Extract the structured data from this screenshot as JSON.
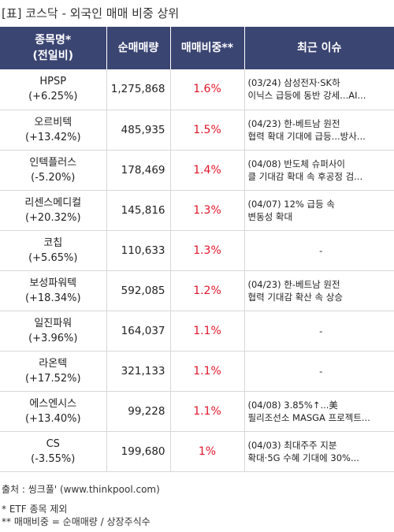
{
  "title": "[표] 코스닥 - 외국인 매매 비중 상위",
  "table": {
    "headers": {
      "name_line1": "종목명*",
      "name_line2": "(전일비)",
      "volume": "순매매량",
      "ratio": "매매비중**",
      "issue": "최근 이슈"
    },
    "rows": [
      {
        "name": "HPSP",
        "change": "(+6.25%)",
        "volume": "1,275,868",
        "ratio": "1.6%",
        "issue1": "(03/24) 삼성전자·SK하",
        "issue2": "이닉스 급등에 동반 강세...AI..."
      },
      {
        "name": "오르비텍",
        "change": "(+13.42%)",
        "volume": "485,935",
        "ratio": "1.5%",
        "issue1": "(04/23) 한-베트남 원전",
        "issue2": "협력 확대 기대에 급등...방사..."
      },
      {
        "name": "인텍플러스",
        "change": "(-5.20%)",
        "volume": "178,469",
        "ratio": "1.4%",
        "issue1": "(04/08) 반도체 슈퍼사이",
        "issue2": "클 기대감 확대 속 후공정 검..."
      },
      {
        "name": "리센스메디컬",
        "change": "(+20.32%)",
        "volume": "145,816",
        "ratio": "1.3%",
        "issue1": "(04/07) 12% 급등 속",
        "issue2": "변동성 확대"
      },
      {
        "name": "코칩",
        "change": "(+5.65%)",
        "volume": "110,633",
        "ratio": "1.3%",
        "issue1": "-",
        "issue2": ""
      },
      {
        "name": "보성파워텍",
        "change": "(+18.34%)",
        "volume": "592,085",
        "ratio": "1.2%",
        "issue1": "(04/23) 한-베트남 원전",
        "issue2": "협력 기대감 확산 속 상승"
      },
      {
        "name": "일진파워",
        "change": "(+3.96%)",
        "volume": "164,037",
        "ratio": "1.1%",
        "issue1": "-",
        "issue2": ""
      },
      {
        "name": "라온텍",
        "change": "(+17.52%)",
        "volume": "321,133",
        "ratio": "1.1%",
        "issue1": "-",
        "issue2": ""
      },
      {
        "name": "에스엔시스",
        "change": "(+13.40%)",
        "volume": "99,228",
        "ratio": "1.1%",
        "issue1": "(04/08) 3.85%↑...美",
        "issue2": "필리조선소 MASGA 프로젝트..."
      },
      {
        "name": "CS",
        "change": "(-3.55%)",
        "volume": "199,680",
        "ratio": "1%",
        "issue1": "(04/03) 최대주주 지분",
        "issue2": "확대·5G 수혜 기대에 30%..."
      }
    ]
  },
  "footer": {
    "source": "출처 : 씽크풀' (www.thinkpool.com)",
    "note1": "* ETF 종목 제외",
    "note2": "** 매매비중 = 순매매량 / 상장주식수"
  },
  "colors": {
    "header_bg": "#3b4572",
    "ratio_text": "#e0152a",
    "border": "#d8d8d8"
  }
}
